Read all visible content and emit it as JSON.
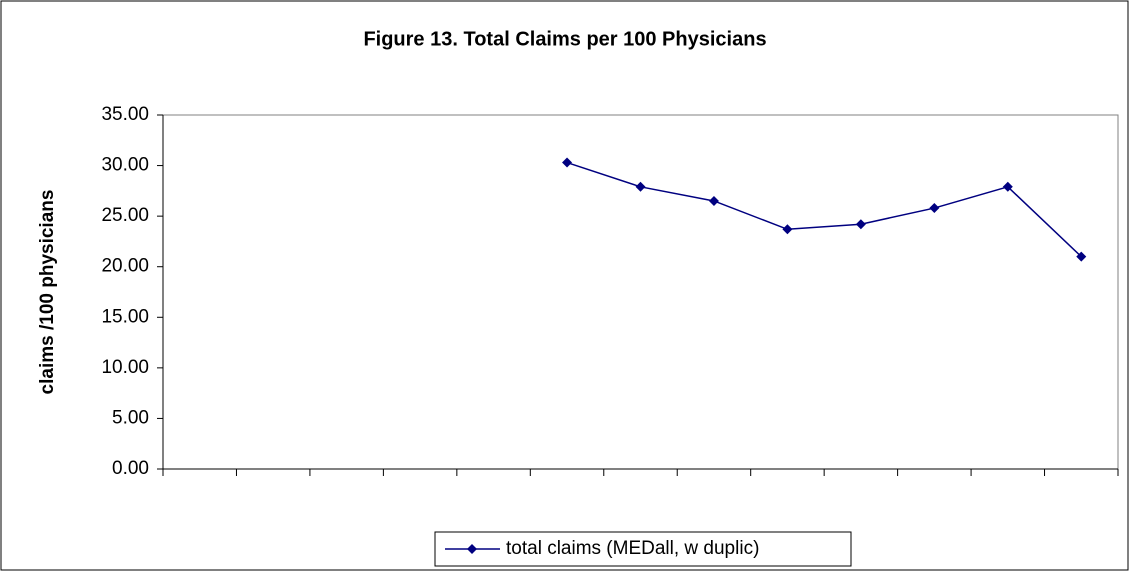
{
  "chart_data": {
    "type": "line",
    "title": "Figure 13.  Total Claims per 100 Physicians",
    "y_label": "claims /100 physicians",
    "categories": [
      null,
      null,
      null,
      null,
      null,
      null,
      null,
      null,
      null,
      null,
      null,
      null,
      null
    ],
    "series": [
      {
        "name": "total claims (MEDall, w duplic)",
        "color": "#000080",
        "values": [
          null,
          null,
          null,
          null,
          null,
          30.3,
          27.9,
          26.5,
          23.7,
          24.2,
          25.8,
          27.9,
          21.0
        ]
      }
    ],
    "ylim": [
      0,
      35
    ],
    "yticks": [
      {
        "value": 0,
        "label": "0.00"
      },
      {
        "value": 5,
        "label": "5.00"
      },
      {
        "value": 10,
        "label": "10.00"
      },
      {
        "value": 15,
        "label": "15.00"
      },
      {
        "value": 20,
        "label": "20.00"
      },
      {
        "value": 25,
        "label": "25.00"
      },
      {
        "value": 30,
        "label": "30.00"
      },
      {
        "value": 35,
        "label": "35.00"
      }
    ],
    "grid": false,
    "legend": "bottom"
  }
}
